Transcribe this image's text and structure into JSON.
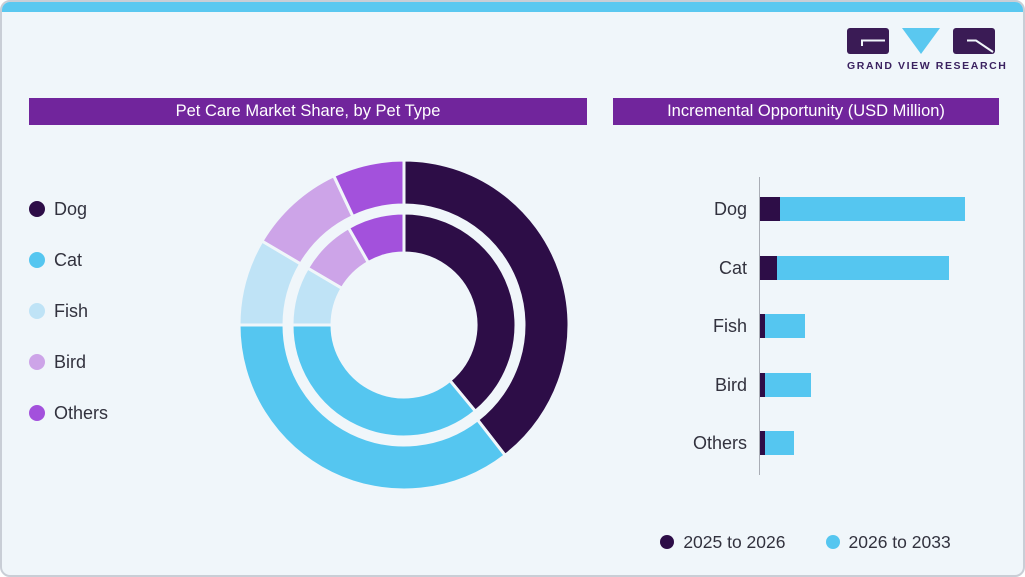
{
  "brand": {
    "name": "GRAND VIEW RESEARCH"
  },
  "colors": {
    "accent_blue": "#5ac8f0",
    "dark_purple": "#2d0d47",
    "header_purple": "#71259c",
    "logo_purple": "#3a1b55",
    "background": "#f0f6fa",
    "text": "#32323e",
    "axis_gray": "#a9adb5"
  },
  "chart_data": [
    {
      "type": "pie",
      "subtype": "double-ring-donut",
      "title": "Pet Care Market Share, by Pet Type",
      "categories": [
        "Dog",
        "Cat",
        "Fish",
        "Bird",
        "Others"
      ],
      "segment_colors": [
        "#2d0d47",
        "#55c6f0",
        "#bfe3f6",
        "#cda4e8",
        "#a351dc"
      ],
      "series": [
        {
          "name": "outer ring",
          "values": [
            39.5,
            35.5,
            8.5,
            9.5,
            7.0
          ]
        },
        {
          "name": "inner ring",
          "values": [
            39.0,
            36.0,
            8.5,
            8.25,
            8.25
          ]
        }
      ],
      "unit": "percent share, estimated from arc angles (no numeric labels shown)",
      "start_angle_deg": 0,
      "direction": "clockwise",
      "legend_position": "left"
    },
    {
      "type": "bar",
      "orientation": "horizontal",
      "stacked": true,
      "title": "Incremental Opportunity (USD Million)",
      "categories": [
        "Dog",
        "Cat",
        "Fish",
        "Bird",
        "Others"
      ],
      "series": [
        {
          "name": "2025 to 2026",
          "color": "#2d0d47",
          "values": [
            9.8,
            8.1,
            2.3,
            2.4,
            2.3
          ]
        },
        {
          "name": "2026 to 2033",
          "color": "#55c6f0",
          "values": [
            90.2,
            84.3,
            19.5,
            22.3,
            14.1
          ]
        }
      ],
      "value_axis": {
        "ticks_shown": false,
        "range": [
          0,
          104
        ],
        "note": "relative units estimated from bar lengths; largest stacked bar (Dog) = 100"
      },
      "grid": false,
      "legend_position": "bottom"
    }
  ]
}
